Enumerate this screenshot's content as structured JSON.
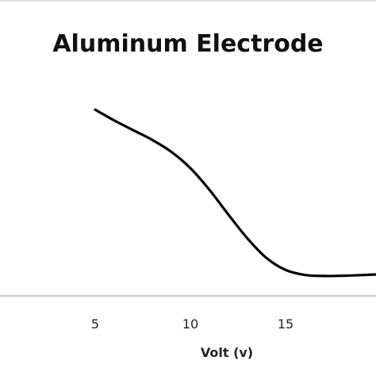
{
  "chart_data": {
    "type": "line",
    "title": "Aluminum Electrode",
    "xlabel": "Volt (v)",
    "ylabel": "",
    "xticks": [
      5,
      10,
      15
    ],
    "xlim": [
      0,
      20
    ],
    "ylim": [
      0,
      1
    ],
    "grid": false,
    "legend": "none",
    "line_color": "#000000",
    "series": [
      {
        "x": [
          5,
          6,
          7,
          8,
          9,
          10,
          11,
          12,
          13,
          14,
          15,
          16,
          17,
          18,
          19,
          20
        ],
        "values": [
          0.86,
          0.81,
          0.765,
          0.72,
          0.665,
          0.59,
          0.49,
          0.375,
          0.265,
          0.175,
          0.12,
          0.097,
          0.092,
          0.093,
          0.096,
          0.1
        ]
      }
    ]
  }
}
